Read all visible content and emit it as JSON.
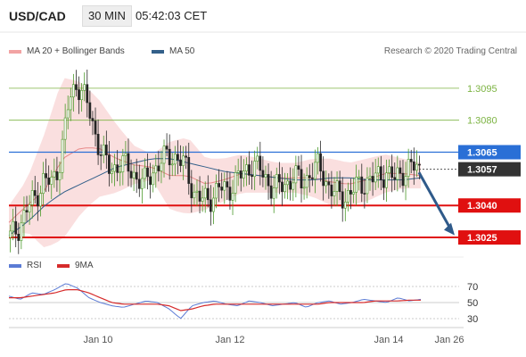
{
  "header": {
    "symbol": "USD/CAD",
    "timeframe": "30 MIN",
    "time": "05:42:03 CET"
  },
  "legend": {
    "bollinger": "MA 20 + Bollinger Bands",
    "ma50": "MA 50",
    "credit": "Research © 2020 Trading Central"
  },
  "indicator_legend": {
    "rsi": "RSI",
    "ma9": "9MA"
  },
  "colors": {
    "bollinger": "#f2a3a3",
    "ma50": "#33608a",
    "rsi": "#5b7bd5",
    "ma9": "#d62b2b",
    "resistance_green": "#7cb342",
    "level_blue": "#2a6fd6",
    "level_red": "#e01010",
    "current_box": "#333333",
    "arrow": "#2f5a8a"
  },
  "chart_data": [
    {
      "type": "candlestick",
      "title": "USD/CAD 30 MIN",
      "ylim": [
        1.302,
        1.3105
      ],
      "x_ticks": [
        "Jan 10",
        "Jan 12",
        "Jan 14",
        "Jan 26"
      ],
      "levels": [
        {
          "label": "1.3095",
          "value": 1.3095,
          "kind": "resistance"
        },
        {
          "label": "1.3080",
          "value": 1.308,
          "kind": "resistance"
        },
        {
          "label": "1.3065",
          "value": 1.3065,
          "kind": "pivot"
        },
        {
          "label": "1.3057",
          "value": 1.3057,
          "kind": "current"
        },
        {
          "label": "1.3040",
          "value": 1.304,
          "kind": "support"
        },
        {
          "label": "1.3025",
          "value": 1.3025,
          "kind": "support"
        }
      ],
      "price_anchors": [
        1.3025,
        1.303,
        1.3038,
        1.3044,
        1.3052,
        1.305,
        1.3062,
        1.3088,
        1.3098,
        1.309,
        1.3076,
        1.3064,
        1.3056,
        1.306,
        1.3058,
        1.3054,
        1.305,
        1.3056,
        1.306,
        1.3064,
        1.3062,
        1.3058,
        1.3046,
        1.3042,
        1.3044,
        1.3048,
        1.3047,
        1.3052,
        1.3055,
        1.306,
        1.3056,
        1.305,
        1.3048,
        1.305,
        1.3054,
        1.305,
        1.3056,
        1.3058,
        1.305,
        1.3045,
        1.3044,
        1.3047,
        1.305,
        1.3052,
        1.3053,
        1.3056,
        1.3052,
        1.3056,
        1.3058,
        1.3057
      ],
      "bands_upper": [
        1.304,
        1.3052,
        1.3074,
        1.31,
        1.3098,
        1.309,
        1.3078,
        1.3068,
        1.3064,
        1.307,
        1.3072,
        1.3062,
        1.3062,
        1.3064,
        1.3062,
        1.306,
        1.306,
        1.3062,
        1.3062,
        1.306,
        1.3062,
        1.3064,
        1.3062,
        1.306
      ],
      "bands_lower": [
        1.3024,
        1.3028,
        1.302,
        1.3024,
        1.3036,
        1.3044,
        1.3046,
        1.305,
        1.3052,
        1.3038,
        1.3036,
        1.3038,
        1.3042,
        1.3046,
        1.3046,
        1.3046,
        1.3046,
        1.3044,
        1.304,
        1.304,
        1.3042,
        1.3046,
        1.3048,
        1.3048
      ],
      "ma50": [
        1.3026,
        1.3032,
        1.304,
        1.3046,
        1.305,
        1.3054,
        1.3058,
        1.306,
        1.3062,
        1.3062,
        1.306,
        1.3058,
        1.3056,
        1.3055,
        1.3054,
        1.3053,
        1.3052,
        1.3052,
        1.3053,
        1.3053,
        1.3052,
        1.3052,
        1.3052,
        1.3053
      ]
    },
    {
      "type": "line",
      "title": "RSI",
      "ylim": [
        20,
        80
      ],
      "y_ticks": [
        70,
        50,
        30
      ],
      "series": [
        {
          "name": "RSI",
          "values": [
            58,
            54,
            62,
            60,
            66,
            74,
            68,
            56,
            50,
            46,
            44,
            48,
            52,
            50,
            42,
            30,
            46,
            50,
            52,
            48,
            46,
            52,
            50,
            46,
            48,
            50,
            44,
            50,
            52,
            48,
            50,
            54,
            52,
            50,
            56,
            52,
            54
          ]
        },
        {
          "name": "9MA",
          "values": [
            56,
            56,
            58,
            60,
            62,
            66,
            66,
            62,
            56,
            50,
            48,
            48,
            48,
            48,
            46,
            40,
            42,
            46,
            48,
            48,
            48,
            48,
            48,
            48,
            48,
            48,
            48,
            48,
            50,
            50,
            50,
            50,
            52,
            52,
            52,
            53,
            53
          ]
        }
      ]
    }
  ]
}
